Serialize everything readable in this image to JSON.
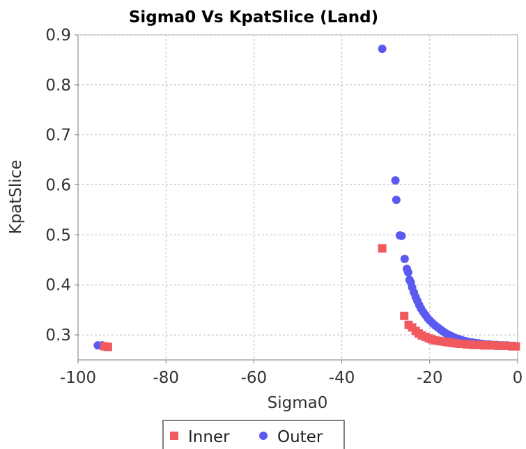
{
  "chart_data": {
    "type": "scatter",
    "title": "Sigma0 Vs KpatSlice (Land)",
    "xlabel": "Sigma0",
    "ylabel": "KpatSlice",
    "xlim": [
      -100,
      0
    ],
    "ylim": [
      0.25,
      0.9
    ],
    "xticks": [
      -100,
      -80,
      -60,
      -40,
      -20,
      0
    ],
    "yticks": [
      0.3,
      0.4,
      0.5,
      0.6,
      0.7,
      0.8,
      0.9
    ],
    "xtick_labels": [
      "-100",
      "-80",
      "-60",
      "-40",
      "-20",
      "0"
    ],
    "ytick_labels": [
      "0.3",
      "0.4",
      "0.5",
      "0.6",
      "0.7",
      "0.8",
      "0.9"
    ],
    "grid": true,
    "legend_position": "bottom",
    "series": [
      {
        "name": "Inner",
        "marker": "square",
        "color": "#f05a5e",
        "points": [
          [
            -94.0,
            0.277
          ],
          [
            -93.2,
            0.276
          ],
          [
            -30.8,
            0.473
          ],
          [
            -25.8,
            0.338
          ],
          [
            -24.8,
            0.32
          ],
          [
            -24.0,
            0.315
          ],
          [
            -23.2,
            0.308
          ],
          [
            -22.5,
            0.303
          ],
          [
            -21.8,
            0.299
          ],
          [
            -21.0,
            0.296
          ],
          [
            -20.2,
            0.293
          ],
          [
            -19.5,
            0.291
          ],
          [
            -18.8,
            0.289
          ],
          [
            -18.0,
            0.288
          ],
          [
            -17.2,
            0.287
          ],
          [
            -16.4,
            0.286
          ],
          [
            -15.6,
            0.285
          ],
          [
            -14.8,
            0.284
          ],
          [
            -14.0,
            0.283
          ],
          [
            -13.2,
            0.282
          ],
          [
            -12.4,
            0.282
          ],
          [
            -11.6,
            0.281
          ],
          [
            -10.8,
            0.281
          ],
          [
            -10.0,
            0.28
          ],
          [
            -9.2,
            0.28
          ],
          [
            -8.4,
            0.28
          ],
          [
            -7.6,
            0.279
          ],
          [
            -6.8,
            0.279
          ],
          [
            -6.0,
            0.279
          ],
          [
            -5.2,
            0.279
          ],
          [
            -4.4,
            0.278
          ],
          [
            -3.6,
            0.278
          ],
          [
            -2.8,
            0.278
          ],
          [
            -2.0,
            0.278
          ],
          [
            -1.2,
            0.277
          ],
          [
            -0.4,
            0.277
          ]
        ]
      },
      {
        "name": "Outer",
        "marker": "circle",
        "color": "#5a5af0",
        "points": [
          [
            -95.5,
            0.279
          ],
          [
            -94.5,
            0.279
          ],
          [
            -30.8,
            0.872
          ],
          [
            -27.8,
            0.609
          ],
          [
            -27.6,
            0.57
          ],
          [
            -26.8,
            0.499
          ],
          [
            -26.4,
            0.498
          ],
          [
            -25.7,
            0.452
          ],
          [
            -25.2,
            0.432
          ],
          [
            -24.9,
            0.425
          ],
          [
            -24.6,
            0.41
          ],
          [
            -24.3,
            0.405
          ],
          [
            -24.0,
            0.395
          ],
          [
            -23.6,
            0.385
          ],
          [
            -23.2,
            0.376
          ],
          [
            -22.8,
            0.368
          ],
          [
            -22.4,
            0.36
          ],
          [
            -22.0,
            0.353
          ],
          [
            -21.5,
            0.346
          ],
          [
            -21.0,
            0.34
          ],
          [
            -20.5,
            0.334
          ],
          [
            -20.0,
            0.329
          ],
          [
            -19.4,
            0.324
          ],
          [
            -18.8,
            0.319
          ],
          [
            -18.2,
            0.315
          ],
          [
            -17.6,
            0.311
          ],
          [
            -17.0,
            0.307
          ],
          [
            -16.3,
            0.303
          ],
          [
            -15.6,
            0.3
          ],
          [
            -14.9,
            0.297
          ],
          [
            -14.2,
            0.294
          ],
          [
            -13.5,
            0.292
          ],
          [
            -12.8,
            0.29
          ],
          [
            -12.0,
            0.288
          ],
          [
            -11.2,
            0.286
          ],
          [
            -10.4,
            0.285
          ],
          [
            -9.6,
            0.284
          ],
          [
            -8.8,
            0.283
          ],
          [
            -8.0,
            0.282
          ],
          [
            -7.2,
            0.281
          ],
          [
            -6.4,
            0.281
          ],
          [
            -5.6,
            0.28
          ],
          [
            -4.8,
            0.28
          ],
          [
            -4.0,
            0.279
          ],
          [
            -3.2,
            0.279
          ],
          [
            -2.4,
            0.279
          ],
          [
            -1.6,
            0.278
          ],
          [
            -0.8,
            0.278
          ]
        ]
      }
    ]
  }
}
